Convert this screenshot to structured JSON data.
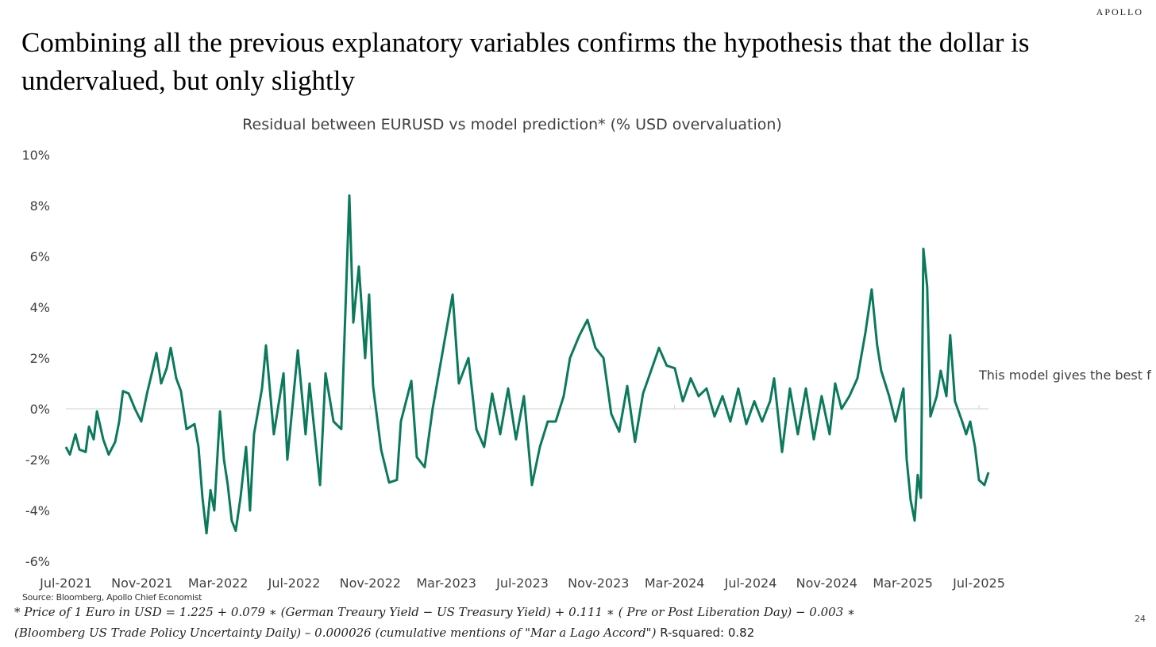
{
  "brand": "APOLLO",
  "title": "Combining all the previous explanatory variables confirms the hypothesis that the dollar is undervalued, but only slightly",
  "annotation": "This model gives the best f",
  "source": "Source: Bloomberg, Apollo Chief Economist",
  "formula_line1": "* Price of 1 Euro in USD = 1.225 + 0.079 ∗ (German Treaury Yield − US Treasury Yield) + 0.111 ∗ ( Pre or Post Liberation Day) − 0.003 ∗",
  "formula_line2": "(Bloomberg US Trade Policy Uncertainty Daily) – 0.000026 (cumulative mentions of \"Mar a Lago Accord\")",
  "r_squared": "R-squared: 0.82",
  "page_number": "24",
  "colors": {
    "line": "#0b7a5c",
    "zero_line": "#d0d0d0"
  },
  "chart_data": {
    "type": "line",
    "title": "Residual between EURUSD vs model prediction* (% USD overvaluation)",
    "xlabel": "",
    "ylabel": "",
    "ylim": [
      -6,
      10
    ],
    "y_ticks": [
      -6,
      -4,
      -2,
      0,
      2,
      4,
      6,
      8,
      10
    ],
    "y_tick_labels": [
      "-6%",
      "-4%",
      "-2%",
      "0%",
      "2%",
      "4%",
      "6%",
      "8%",
      "10%"
    ],
    "x_unit": "months since Jul-2021",
    "xlim": [
      0,
      48.5
    ],
    "x_ticks": [
      0,
      4,
      8,
      12,
      16,
      20,
      24,
      28,
      32,
      36,
      40,
      44,
      48
    ],
    "x_tick_labels": [
      "Jul-2021",
      "Nov-2021",
      "Mar-2022",
      "Jul-2022",
      "Nov-2022",
      "Mar-2023",
      "Jul-2023",
      "Nov-2023",
      "Mar-2024",
      "Jul-2024",
      "Nov-2024",
      "Mar-2025",
      "Jul-2025"
    ],
    "grid": false,
    "legend": "none",
    "series": [
      {
        "name": "Residual",
        "x": [
          0,
          0.21,
          0.5,
          0.71,
          1.04,
          1.21,
          1.46,
          1.63,
          1.96,
          2.25,
          2.59,
          2.8,
          3.0,
          3.3,
          3.63,
          3.96,
          4.26,
          4.55,
          4.76,
          5.01,
          5.3,
          5.51,
          5.8,
          6.05,
          6.34,
          6.76,
          6.97,
          7.18,
          7.39,
          7.6,
          7.8,
          8.1,
          8.31,
          8.51,
          8.72,
          8.93,
          9.18,
          9.47,
          9.68,
          9.89,
          10.31,
          10.52,
          10.93,
          11.44,
          11.64,
          12.19,
          12.6,
          12.81,
          13.36,
          13.65,
          14.07,
          14.48,
          14.61,
          14.9,
          15.11,
          15.4,
          15.73,
          15.94,
          16.15,
          16.57,
          16.99,
          17.4,
          17.61,
          18.16,
          18.45,
          18.86,
          19.28,
          19.7,
          20.33,
          20.66,
          21.16,
          21.58,
          21.99,
          22.41,
          22.83,
          23.25,
          23.66,
          24.08,
          24.5,
          24.92,
          25.33,
          25.75,
          26.17,
          26.5,
          27.0,
          27.42,
          27.84,
          28.26,
          28.67,
          29.09,
          29.51,
          29.92,
          30.34,
          30.76,
          31.18,
          31.59,
          32.01,
          32.43,
          32.85,
          33.26,
          33.68,
          34.1,
          34.52,
          34.93,
          35.35,
          35.77,
          36.19,
          36.6,
          37.02,
          37.23,
          37.65,
          38.06,
          38.48,
          38.9,
          39.32,
          39.73,
          40.15,
          40.44,
          40.78,
          41.19,
          41.61,
          42.03,
          42.36,
          42.65,
          42.86,
          43.28,
          43.61,
          44.03,
          44.2,
          44.41,
          44.62,
          44.78,
          44.95,
          45.08,
          45.28,
          45.45,
          45.78,
          45.99,
          46.29,
          46.49,
          46.74,
          47.12,
          47.33,
          47.54,
          47.79,
          48.0,
          48.29,
          48.5
        ],
        "values": [
          -1.5,
          -1.8,
          -1.0,
          -1.6,
          -1.7,
          -0.7,
          -1.2,
          -0.1,
          -1.2,
          -1.8,
          -1.3,
          -0.5,
          0.7,
          0.6,
          0.0,
          -0.5,
          0.6,
          1.5,
          2.2,
          1.0,
          1.6,
          2.4,
          1.2,
          0.7,
          -0.8,
          -0.6,
          -1.5,
          -3.5,
          -4.9,
          -3.2,
          -4.0,
          -0.1,
          -2.0,
          -3.0,
          -4.4,
          -4.8,
          -3.5,
          -1.5,
          -4.0,
          -1.0,
          0.8,
          2.5,
          -1.0,
          1.4,
          -2.0,
          2.3,
          -1.0,
          1.0,
          -3.0,
          1.4,
          -0.5,
          -0.8,
          2.0,
          8.4,
          3.4,
          5.6,
          2.0,
          4.5,
          0.9,
          -1.6,
          -2.9,
          -2.8,
          -0.5,
          1.1,
          -1.9,
          -2.3,
          0.0,
          1.8,
          4.5,
          1.0,
          2.0,
          -0.8,
          -1.5,
          0.6,
          -1.0,
          0.8,
          -1.2,
          0.5,
          -3.0,
          -1.5,
          -0.5,
          -0.5,
          0.5,
          2.0,
          2.9,
          3.5,
          2.4,
          2.0,
          -0.2,
          -0.9,
          0.9,
          -1.3,
          0.6,
          1.5,
          2.4,
          1.7,
          1.6,
          0.3,
          1.2,
          0.5,
          0.8,
          -0.3,
          0.5,
          -0.5,
          0.8,
          -0.6,
          0.3,
          -0.5,
          0.3,
          1.2,
          -1.7,
          0.8,
          -1.0,
          0.8,
          -1.2,
          0.5,
          -1.0,
          1.0,
          0.0,
          0.5,
          1.2,
          3.0,
          4.7,
          2.5,
          1.5,
          0.5,
          -0.5,
          0.8,
          -2.0,
          -3.6,
          -4.4,
          -2.6,
          -3.5,
          6.3,
          4.8,
          -0.3,
          0.5,
          1.5,
          0.5,
          2.9,
          0.3,
          -0.5,
          -1.0,
          -0.5,
          -1.5,
          -2.8,
          -3.0,
          -2.5
        ]
      }
    ]
  }
}
